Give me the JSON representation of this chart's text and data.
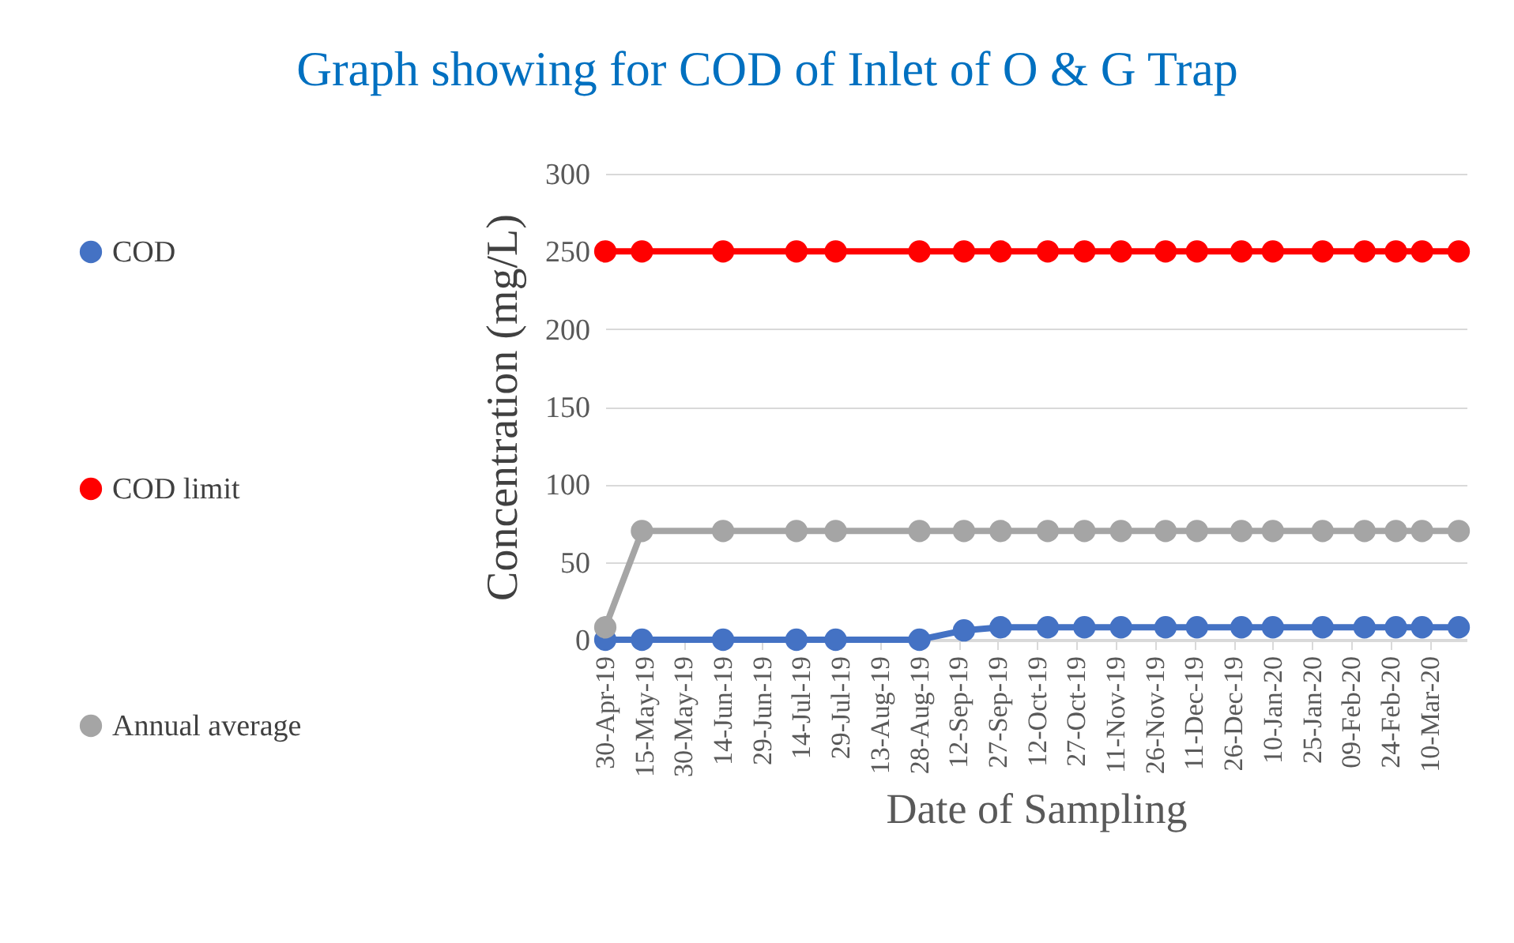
{
  "chart_data": {
    "type": "line",
    "title": "Graph showing for COD of Inlet of O & G Trap",
    "xlabel": "Date of Sampling",
    "ylabel": "Concentration (mg/L)",
    "x": [
      "2019-04-30",
      "2019-05-14",
      "2019-06-14",
      "2019-07-12",
      "2019-07-27",
      "2019-08-28",
      "2019-09-14",
      "2019-09-28",
      "2019-10-16",
      "2019-10-30",
      "2019-11-13",
      "2019-11-30",
      "2019-12-12",
      "2019-12-29",
      "2020-01-10",
      "2020-01-29",
      "2020-02-14",
      "2020-02-26",
      "2020-03-07",
      "2020-03-21"
    ],
    "series": [
      {
        "name": "COD",
        "color": "#4472c4",
        "values": [
          0,
          0,
          0,
          0,
          0,
          0,
          6,
          8,
          8,
          8,
          8,
          8,
          8,
          8,
          8,
          8,
          8,
          8,
          8,
          8
        ]
      },
      {
        "name": "COD limit",
        "color": "#ff0000",
        "values": [
          250,
          250,
          250,
          250,
          250,
          250,
          250,
          250,
          250,
          250,
          250,
          250,
          250,
          250,
          250,
          250,
          250,
          250,
          250,
          250
        ]
      },
      {
        "name": "Annual average",
        "color": "#a5a5a5",
        "values": [
          8,
          70,
          70,
          70,
          70,
          70,
          70,
          70,
          70,
          70,
          70,
          70,
          70,
          70,
          70,
          70,
          70,
          70,
          70,
          70
        ]
      }
    ],
    "xlim": [
      "2019-04-30",
      "2020-03-24"
    ],
    "xticks": [
      {
        "value": "2019-04-30",
        "label": "30-Apr-19"
      },
      {
        "value": "2019-05-15",
        "label": "15-May-19"
      },
      {
        "value": "2019-05-30",
        "label": "30-May-19"
      },
      {
        "value": "2019-06-14",
        "label": "14-Jun-19"
      },
      {
        "value": "2019-06-29",
        "label": "29-Jun-19"
      },
      {
        "value": "2019-07-14",
        "label": "14-Jul-19"
      },
      {
        "value": "2019-07-29",
        "label": "29-Jul-19"
      },
      {
        "value": "2019-08-13",
        "label": "13-Aug-19"
      },
      {
        "value": "2019-08-28",
        "label": "28-Aug-19"
      },
      {
        "value": "2019-09-12",
        "label": "12-Sep-19"
      },
      {
        "value": "2019-09-27",
        "label": "27-Sep-19"
      },
      {
        "value": "2019-10-12",
        "label": "12-Oct-19"
      },
      {
        "value": "2019-10-27",
        "label": "27-Oct-19"
      },
      {
        "value": "2019-11-11",
        "label": "11-Nov-19"
      },
      {
        "value": "2019-11-26",
        "label": "26-Nov-19"
      },
      {
        "value": "2019-12-11",
        "label": "11-Dec-19"
      },
      {
        "value": "2019-12-26",
        "label": "26-Dec-19"
      },
      {
        "value": "2020-01-10",
        "label": "10-Jan-20"
      },
      {
        "value": "2020-01-25",
        "label": "25-Jan-20"
      },
      {
        "value": "2020-02-09",
        "label": "09-Feb-20"
      },
      {
        "value": "2020-02-24",
        "label": "24-Feb-20"
      },
      {
        "value": "2020-03-10",
        "label": "10-Mar-20"
      }
    ],
    "ylim": [
      0,
      300
    ],
    "yticks": [
      0,
      50,
      100,
      150,
      200,
      250,
      300
    ],
    "grid": "y",
    "legend": "left",
    "marker": "circle",
    "line_style": "solid"
  }
}
